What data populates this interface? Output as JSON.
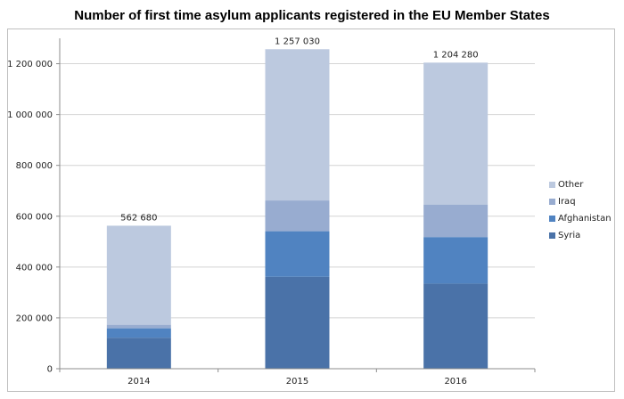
{
  "chart_data": {
    "type": "bar",
    "stacked": true,
    "title": "Number of first time asylum applicants registered in the EU Member States",
    "xlabel": "",
    "ylabel": "",
    "categories": [
      "2014",
      "2015",
      "2016"
    ],
    "series": [
      {
        "name": "Syria",
        "color": "#4a72a8",
        "values": [
          122000,
          362000,
          335000
        ]
      },
      {
        "name": "Afghanistan",
        "color": "#5083c1",
        "values": [
          37000,
          179000,
          183000
        ]
      },
      {
        "name": "Iraq",
        "color": "#98acd0",
        "values": [
          14000,
          121000,
          128000
        ]
      },
      {
        "name": "Other",
        "color": "#bcc9df",
        "values": [
          389680,
          595030,
          558280
        ]
      }
    ],
    "totals": [
      "562 680",
      "1 257 030",
      "1 204 280"
    ],
    "ylim": [
      0,
      1300000
    ],
    "yticks": [
      0,
      200000,
      400000,
      600000,
      800000,
      1000000,
      1200000
    ],
    "ytick_labels": [
      "0",
      "200 000",
      "400 000",
      "600 000",
      "800 000",
      "1 000 000",
      "1 200 000"
    ],
    "grid": true,
    "legend_position": "right"
  }
}
